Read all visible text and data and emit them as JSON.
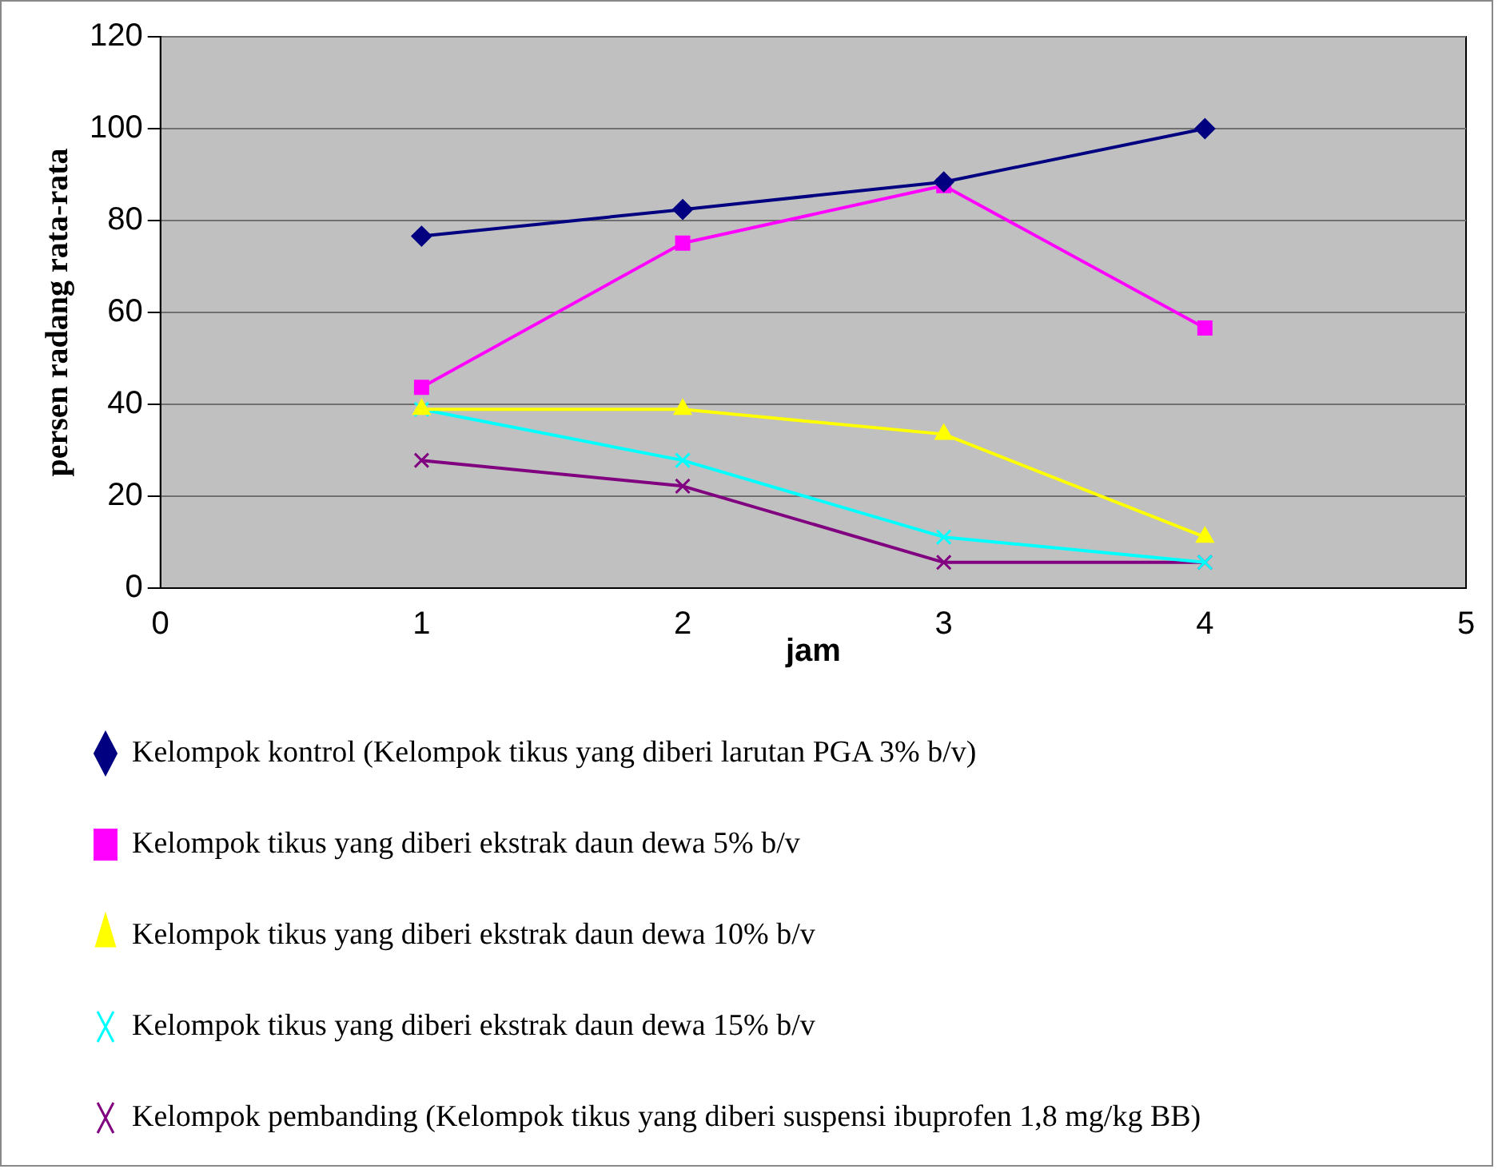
{
  "chart_data": {
    "type": "line",
    "xlabel": "jam",
    "ylabel": "persen radang rata-rata",
    "x": [
      1,
      2,
      3,
      4
    ],
    "xlim": [
      0,
      5
    ],
    "xticks": [
      0,
      1,
      2,
      3,
      4,
      5
    ],
    "ylim": [
      0,
      120
    ],
    "yticks": [
      0,
      20,
      40,
      60,
      80,
      100,
      120
    ],
    "grid": "y",
    "legend": "bottom",
    "series": [
      {
        "name": "Kelompok kontrol (Kelompok tikus yang diberi larutan PGA 3% b/v)",
        "color": "#000080",
        "marker": "diamond",
        "values": [
          76.6,
          82.4,
          88.4,
          100
        ]
      },
      {
        "name": "Kelompok tikus yang diberi ekstrak daun dewa 5% b/v",
        "color": "#ff00ff",
        "marker": "square",
        "values": [
          43.7,
          75.1,
          87.6,
          56.6
        ]
      },
      {
        "name": "Kelompok tikus yang diberi ekstrak daun dewa 10% b/v",
        "color": "#ffff00",
        "marker": "triangle",
        "values": [
          38.9,
          38.9,
          33.5,
          11.1
        ]
      },
      {
        "name": "Kelompok tikus yang diberi ekstrak daun dewa 15% b/v",
        "color": "#00ffff",
        "marker": "cross",
        "values": [
          38.9,
          27.8,
          11.1,
          5.6
        ]
      },
      {
        "name": "Kelompok pembanding (Kelompok tikus yang diberi suspensi ibuprofen 1,8 mg/kg BB)",
        "color": "#800080",
        "marker": "cross",
        "values": [
          27.8,
          22.2,
          5.6,
          5.6
        ]
      }
    ]
  }
}
